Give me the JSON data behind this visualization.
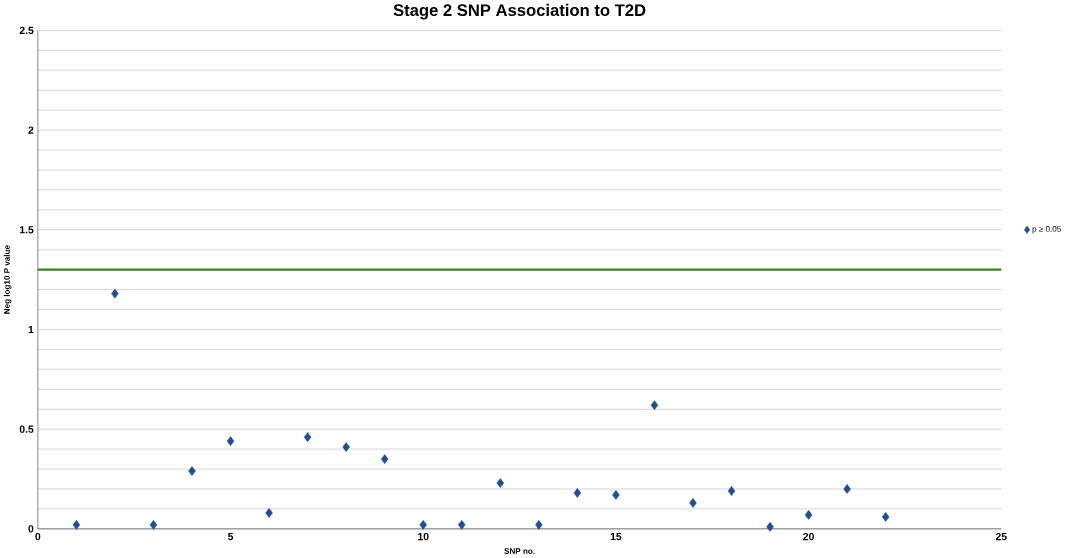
{
  "chart_data": {
    "type": "scatter",
    "title": "Stage 2 SNP Association to T2D",
    "xlabel": "SNP no.",
    "ylabel": "Neg log10 P value",
    "x": [
      1,
      2,
      3,
      4,
      5,
      6,
      7,
      8,
      9,
      10,
      11,
      12,
      13,
      14,
      15,
      16,
      17,
      18,
      19,
      20,
      21,
      22
    ],
    "series": [
      {
        "name": "p ≥ 0.05",
        "color": "#1f4e96",
        "values": [
          0.02,
          1.18,
          0.02,
          0.29,
          0.44,
          0.08,
          0.46,
          0.41,
          0.35,
          0.02,
          0.02,
          0.23,
          0.02,
          0.18,
          0.17,
          0.62,
          0.13,
          0.19,
          0.01,
          0.07,
          0.2,
          0.06
        ]
      }
    ],
    "xlim": [
      0,
      25
    ],
    "xticks": [
      0,
      5,
      10,
      15,
      20,
      25
    ],
    "ylim": [
      0,
      2.5
    ],
    "yticks": [
      0,
      0.5,
      1,
      1.5,
      2,
      2.5
    ],
    "ref_lines": [
      {
        "axis": "y",
        "value": 1.3,
        "color": "#3a7d2a"
      }
    ],
    "grid": "y",
    "legend": "right",
    "marker": "diamond"
  }
}
